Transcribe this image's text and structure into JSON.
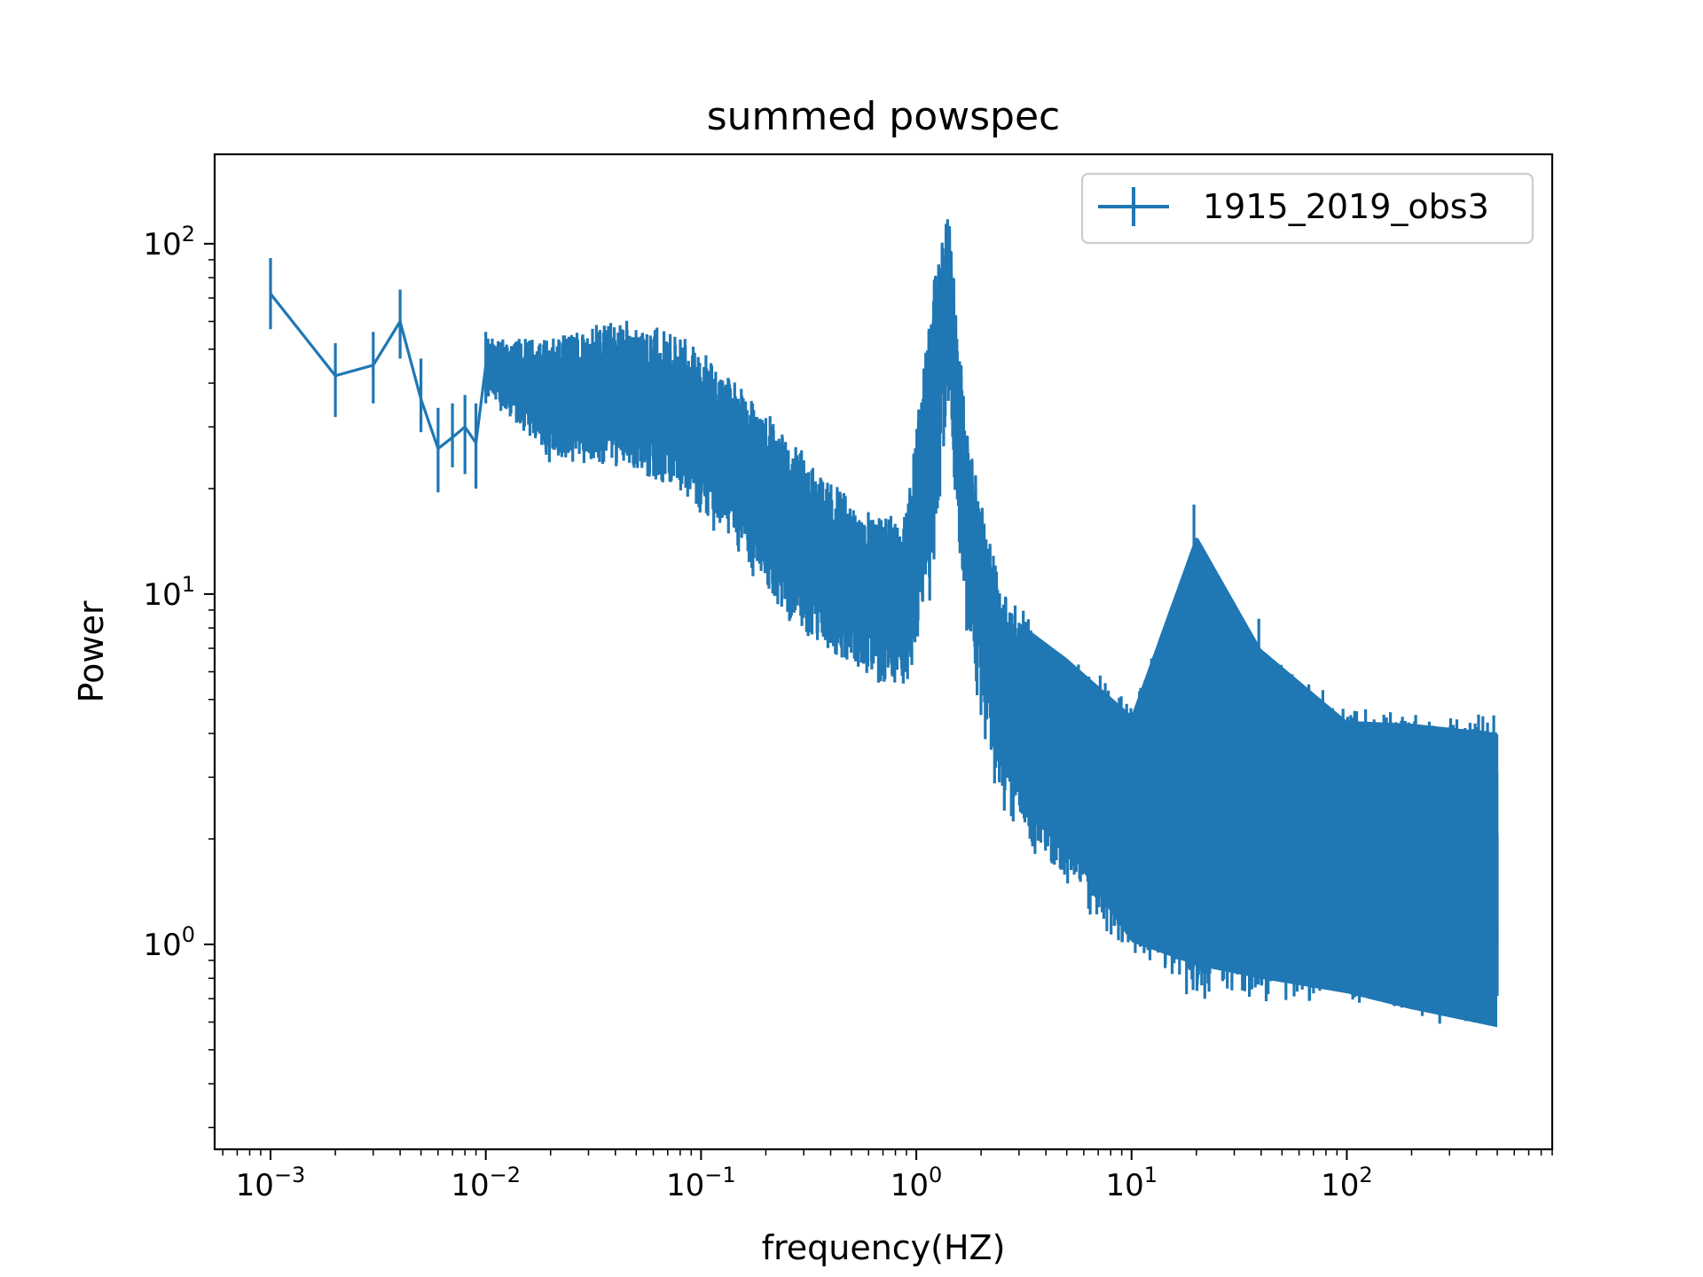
{
  "chart_data": {
    "type": "line",
    "title": "summed powspec",
    "xlabel": "frequency(HZ)",
    "ylabel": "Power",
    "xscale": "log",
    "yscale": "log",
    "xlim": [
      0.00055,
      900
    ],
    "ylim": [
      0.26,
      180
    ],
    "x_ticks": [
      {
        "mantissa": "10",
        "exponent": "−3",
        "value": 0.001
      },
      {
        "mantissa": "10",
        "exponent": "−2",
        "value": 0.01
      },
      {
        "mantissa": "10",
        "exponent": "−1",
        "value": 0.1
      },
      {
        "mantissa": "10",
        "exponent": "0",
        "value": 1
      },
      {
        "mantissa": "10",
        "exponent": "1",
        "value": 10
      },
      {
        "mantissa": "10",
        "exponent": "2",
        "value": 100
      }
    ],
    "y_ticks": [
      {
        "mantissa": "10",
        "exponent": "0",
        "value": 1
      },
      {
        "mantissa": "10",
        "exponent": "1",
        "value": 10
      },
      {
        "mantissa": "10",
        "exponent": "2",
        "value": 100
      }
    ],
    "grid": false,
    "legend_position": "top-right",
    "series": [
      {
        "name": "1915_2019_obs3",
        "color": "#1f77b4",
        "style": "line with vertical error bars",
        "x_range": [
          0.001,
          500
        ],
        "trend": "power-law decline with a QPO peak near 1.4 Hz and narrow spikes near 20 Hz and 40 Hz",
        "envelope": [
          {
            "x": 0.001,
            "y": 72,
            "ylow": 57,
            "yhigh": 91
          },
          {
            "x": 0.002,
            "y": 42,
            "ylow": 32,
            "yhigh": 52
          },
          {
            "x": 0.003,
            "y": 45,
            "ylow": 35,
            "yhigh": 56
          },
          {
            "x": 0.004,
            "y": 60,
            "ylow": 47,
            "yhigh": 74
          },
          {
            "x": 0.005,
            "y": 36,
            "ylow": 29,
            "yhigh": 47
          },
          {
            "x": 0.006,
            "y": 26,
            "ylow": 19.5,
            "yhigh": 34
          },
          {
            "x": 0.007,
            "y": 28,
            "ylow": 23,
            "yhigh": 35
          },
          {
            "x": 0.008,
            "y": 30,
            "ylow": 22,
            "yhigh": 37
          },
          {
            "x": 0.009,
            "y": 27,
            "ylow": 20,
            "yhigh": 35
          },
          {
            "x": 0.01,
            "y": 45,
            "ylow": 35,
            "yhigh": 56
          },
          {
            "x": 0.02,
            "y": 38,
            "ylow": 21,
            "yhigh": 56
          },
          {
            "x": 0.04,
            "y": 40,
            "ylow": 20,
            "yhigh": 66
          },
          {
            "x": 0.08,
            "y": 34,
            "ylow": 17,
            "yhigh": 60
          },
          {
            "x": 0.15,
            "y": 24,
            "ylow": 11,
            "yhigh": 45
          },
          {
            "x": 0.3,
            "y": 14,
            "ylow": 6.5,
            "yhigh": 28
          },
          {
            "x": 0.6,
            "y": 10,
            "ylow": 5,
            "yhigh": 19
          },
          {
            "x": 0.9,
            "y": 12,
            "ylow": 4.2,
            "yhigh": 17
          },
          {
            "x": 1.2,
            "y": 40,
            "ylow": 7,
            "yhigh": 75
          },
          {
            "x": 1.4,
            "y": 85,
            "ylow": 28,
            "yhigh": 125
          },
          {
            "x": 1.7,
            "y": 20,
            "ylow": 5,
            "yhigh": 27
          },
          {
            "x": 2.5,
            "y": 5.5,
            "ylow": 1.8,
            "yhigh": 11
          },
          {
            "x": 5,
            "y": 3,
            "ylow": 1.3,
            "yhigh": 8
          },
          {
            "x": 10,
            "y": 2.4,
            "ylow": 0.7,
            "yhigh": 5.5
          },
          {
            "x": 20,
            "y": 2.3,
            "ylow": 0.6,
            "yhigh": 18
          },
          {
            "x": 40,
            "y": 2.2,
            "ylow": 0.55,
            "yhigh": 8.5
          },
          {
            "x": 100,
            "y": 2.1,
            "ylow": 0.5,
            "yhigh": 5.3
          },
          {
            "x": 200,
            "y": 2.1,
            "ylow": 0.45,
            "yhigh": 5.2
          },
          {
            "x": 500,
            "y": 2.0,
            "ylow": 0.4,
            "yhigh": 4.9
          }
        ]
      }
    ]
  }
}
